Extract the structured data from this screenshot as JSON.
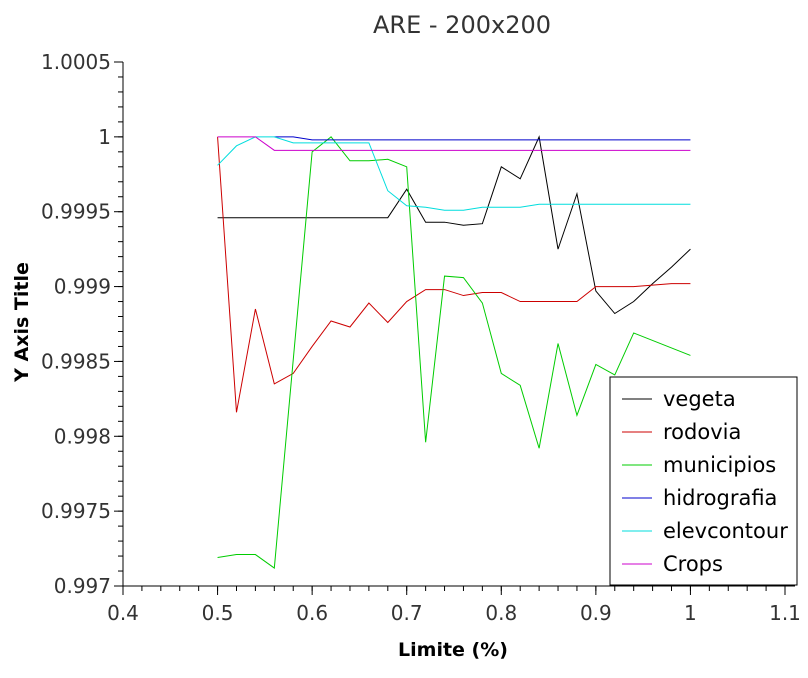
{
  "chart_data": {
    "type": "line",
    "title": "ARE - 200x200",
    "xlabel": "Limite (%)",
    "ylabel": "Y Axis Title",
    "xlim": [
      0.4,
      1.1
    ],
    "ylim": [
      0.997,
      1.0005
    ],
    "x_ticks": [
      "0.4",
      "0.5",
      "0.6",
      "0.7",
      "0.8",
      "0.9",
      "1",
      "1.1"
    ],
    "y_ticks": [
      "0.997",
      "0.9975",
      "0.998",
      "0.9985",
      "0.999",
      "0.9995",
      "1",
      "1.0005"
    ],
    "legend_position": "bottom-right",
    "grid": false,
    "series": [
      {
        "name": "vegeta",
        "color": "#000000",
        "points": [
          [
            0.5,
            0.99946
          ],
          [
            0.68,
            0.99946
          ],
          [
            0.7,
            0.99965
          ],
          [
            0.72,
            0.99943
          ],
          [
            0.74,
            0.99943
          ],
          [
            0.76,
            0.99941
          ],
          [
            0.78,
            0.99942
          ],
          [
            0.8,
            0.9998
          ],
          [
            0.82,
            0.99972
          ],
          [
            0.84,
            1.0
          ],
          [
            0.86,
            0.99925
          ],
          [
            0.88,
            0.99962
          ],
          [
            0.9,
            0.99897
          ],
          [
            0.92,
            0.99882
          ],
          [
            0.94,
            0.9989
          ],
          [
            0.96,
            0.99902
          ],
          [
            0.98,
            0.99913
          ],
          [
            1.0,
            0.99925
          ]
        ]
      },
      {
        "name": "rodovia",
        "color": "#cc0000",
        "points": [
          [
            0.5,
            1.0
          ],
          [
            0.52,
            0.99816
          ],
          [
            0.54,
            0.99885
          ],
          [
            0.56,
            0.99835
          ],
          [
            0.58,
            0.99842
          ],
          [
            0.6,
            0.9986
          ],
          [
            0.62,
            0.99877
          ],
          [
            0.64,
            0.99873
          ],
          [
            0.66,
            0.99889
          ],
          [
            0.68,
            0.99876
          ],
          [
            0.7,
            0.9989
          ],
          [
            0.72,
            0.99898
          ],
          [
            0.74,
            0.99898
          ],
          [
            0.76,
            0.99894
          ],
          [
            0.78,
            0.99896
          ],
          [
            0.8,
            0.99896
          ],
          [
            0.82,
            0.9989
          ],
          [
            0.84,
            0.9989
          ],
          [
            0.86,
            0.9989
          ],
          [
            0.88,
            0.9989
          ],
          [
            0.9,
            0.999
          ],
          [
            0.92,
            0.999
          ],
          [
            0.94,
            0.999
          ],
          [
            0.96,
            0.99901
          ],
          [
            0.98,
            0.99902
          ],
          [
            1.0,
            0.99902
          ]
        ]
      },
      {
        "name": "municipios",
        "color": "#00cc00",
        "points": [
          [
            0.5,
            0.99719
          ],
          [
            0.52,
            0.99721
          ],
          [
            0.54,
            0.99721
          ],
          [
            0.56,
            0.99712
          ],
          [
            0.6,
            0.9999
          ],
          [
            0.62,
            1.0
          ],
          [
            0.64,
            0.99984
          ],
          [
            0.66,
            0.99984
          ],
          [
            0.68,
            0.99985
          ],
          [
            0.7,
            0.9998
          ],
          [
            0.72,
            0.99796
          ],
          [
            0.74,
            0.99907
          ],
          [
            0.76,
            0.99906
          ],
          [
            0.78,
            0.99889
          ],
          [
            0.8,
            0.99842
          ],
          [
            0.82,
            0.99834
          ],
          [
            0.84,
            0.99792
          ],
          [
            0.86,
            0.99862
          ],
          [
            0.88,
            0.99814
          ],
          [
            0.9,
            0.99848
          ],
          [
            0.92,
            0.99841
          ],
          [
            0.94,
            0.99869
          ],
          [
            1.0,
            0.99854
          ]
        ]
      },
      {
        "name": "hidrografia",
        "color": "#0000cc",
        "points": [
          [
            0.56,
            1.0
          ],
          [
            0.58,
            1.0
          ],
          [
            0.6,
            0.99998
          ],
          [
            0.7,
            0.99998
          ],
          [
            0.8,
            0.99998
          ],
          [
            0.9,
            0.99998
          ],
          [
            1.0,
            0.99998
          ]
        ]
      },
      {
        "name": "elevcontour",
        "color": "#00dddd",
        "points": [
          [
            0.5,
            0.99981
          ],
          [
            0.52,
            0.99994
          ],
          [
            0.54,
            1.0
          ],
          [
            0.56,
            1.0
          ],
          [
            0.58,
            0.99996
          ],
          [
            0.6,
            0.99996
          ],
          [
            0.62,
            0.99996
          ],
          [
            0.64,
            0.99996
          ],
          [
            0.66,
            0.99996
          ],
          [
            0.68,
            0.99964
          ],
          [
            0.7,
            0.99954
          ],
          [
            0.72,
            0.99953
          ],
          [
            0.74,
            0.99951
          ],
          [
            0.76,
            0.99951
          ],
          [
            0.78,
            0.99953
          ],
          [
            0.8,
            0.99953
          ],
          [
            0.82,
            0.99953
          ],
          [
            0.84,
            0.99955
          ],
          [
            0.86,
            0.99955
          ],
          [
            0.9,
            0.99955
          ],
          [
            0.95,
            0.99955
          ],
          [
            1.0,
            0.99955
          ]
        ]
      },
      {
        "name": "Crops",
        "color": "#cc00cc",
        "points": [
          [
            0.5,
            1.0
          ],
          [
            0.52,
            1.0
          ],
          [
            0.54,
            1.0
          ],
          [
            0.56,
            0.99991
          ],
          [
            0.6,
            0.99991
          ],
          [
            0.7,
            0.99991
          ],
          [
            0.8,
            0.99991
          ],
          [
            0.9,
            0.99991
          ],
          [
            1.0,
            0.99991
          ]
        ]
      }
    ]
  }
}
